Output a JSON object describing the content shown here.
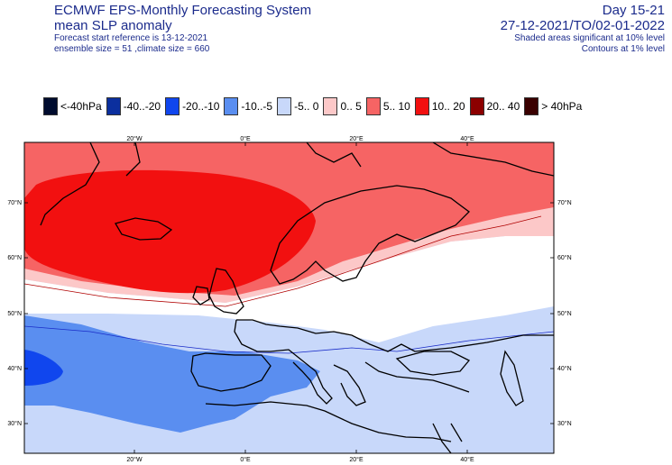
{
  "header": {
    "title_line1": "ECMWF EPS-Monthly Forecasting System",
    "title_line2": "mean SLP anomaly",
    "forecast_start": "Forecast start reference is 13-12-2021",
    "ensemble": "ensemble size = 51  ,climate size = 660",
    "period_label": "Day 15-21",
    "date_range": "27-12-2021/TO/02-01-2022",
    "note1": "Shaded areas significant at 10% level",
    "note2": "Contours at 1% level"
  },
  "legend": [
    {
      "label": "<-40hPa",
      "color": "#000c2e"
    },
    {
      "label": "-40..-20",
      "color": "#0b2f9e"
    },
    {
      "label": "-20..-10",
      "color": "#1046ee"
    },
    {
      "label": "-10..-5",
      "color": "#5a8ef0"
    },
    {
      "label": "-5..  0",
      "color": "#c8d8fa"
    },
    {
      "label": "0..  5",
      "color": "#fcc8c8"
    },
    {
      "label": "5..  10",
      "color": "#f66464"
    },
    {
      "label": "10..  20",
      "color": "#f21010"
    },
    {
      "label": "20..  40",
      "color": "#8c0000"
    },
    {
      "label": ">  40hPa",
      "color": "#3a0000"
    }
  ],
  "axes": {
    "lon_top": [
      "20°W",
      "0°E",
      "20°E",
      "40°E"
    ],
    "lon_bottom": [
      "20°W",
      "0°E",
      "20°E",
      "40°E"
    ],
    "lat_left": [
      "70°N",
      "60°N",
      "50°N",
      "40°N",
      "30°N"
    ],
    "lat_right": [
      "70°N",
      "60°N",
      "50°N",
      "40°N",
      "30°N"
    ]
  }
}
